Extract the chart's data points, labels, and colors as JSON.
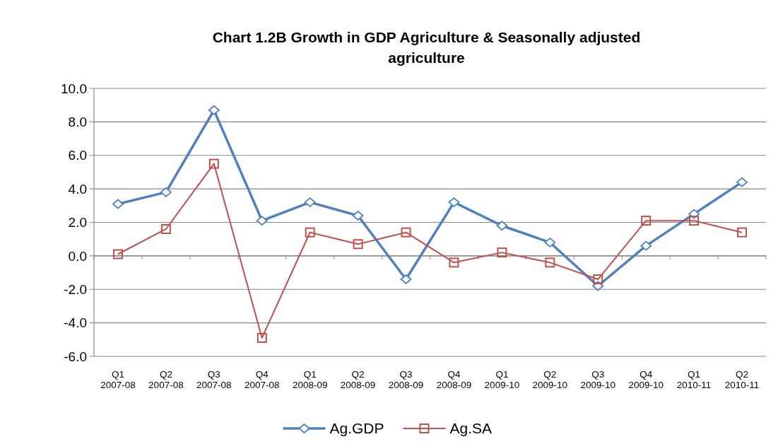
{
  "chart_data": {
    "type": "line",
    "title": "Chart 1.2B Growth in GDP Agriculture & Seasonally adjusted agriculture",
    "categories": [
      "Q1\n2007-08",
      "Q2\n2007-08",
      "Q3\n2007-08",
      "Q4\n2007-08",
      "Q1\n2008-09",
      "Q2\n2008-09",
      "Q3\n2008-09",
      "Q4\n2008-09",
      "Q1\n2009-10",
      "Q2\n2009-10",
      "Q3\n2009-10",
      "Q4\n2009-10",
      "Q1\n2010-11",
      "Q2\n2010-11"
    ],
    "series": [
      {
        "name": "Ag.GDP",
        "color": "#4f81bd",
        "marker": "diamond",
        "values": [
          3.1,
          3.8,
          8.7,
          2.1,
          3.2,
          2.4,
          -1.4,
          3.2,
          1.8,
          0.8,
          -1.8,
          0.6,
          2.5,
          4.4
        ]
      },
      {
        "name": "Ag.SA",
        "color": "#c0504d",
        "marker": "square",
        "values": [
          0.1,
          1.6,
          5.5,
          -4.9,
          1.4,
          0.7,
          1.4,
          -0.4,
          0.2,
          -0.4,
          -1.4,
          2.1,
          2.1,
          1.4
        ]
      }
    ],
    "ylim": [
      -6,
      10
    ],
    "yticks": [
      {
        "value": -6,
        "label": "-6.0"
      },
      {
        "value": -4,
        "label": "-4.0"
      },
      {
        "value": -2,
        "label": "-2.0"
      },
      {
        "value": 0,
        "label": "0.0"
      },
      {
        "value": 2,
        "label": "2.0"
      },
      {
        "value": 4,
        "label": "4.0"
      },
      {
        "value": 6,
        "label": "6.0"
      },
      {
        "value": 8,
        "label": "8.0"
      },
      {
        "value": 10,
        "label": "10.0"
      }
    ],
    "grid": "y",
    "legend": "bottom"
  }
}
